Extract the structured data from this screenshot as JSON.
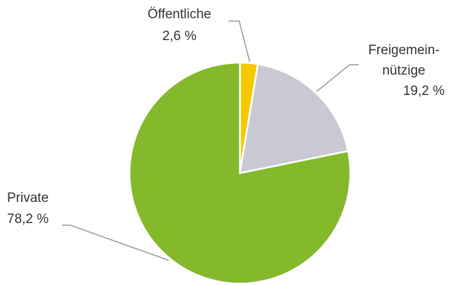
{
  "chart_data": {
    "type": "pie",
    "categories": [
      "Öffentliche",
      "Freigemein-nützige",
      "Private"
    ],
    "values": [
      2.6,
      19.2,
      78.2
    ],
    "value_labels": [
      "2,6 %",
      "19,2 %",
      "78,2 %"
    ],
    "colors": [
      "#f6c800",
      "#c9c9d3",
      "#83b92b"
    ]
  }
}
